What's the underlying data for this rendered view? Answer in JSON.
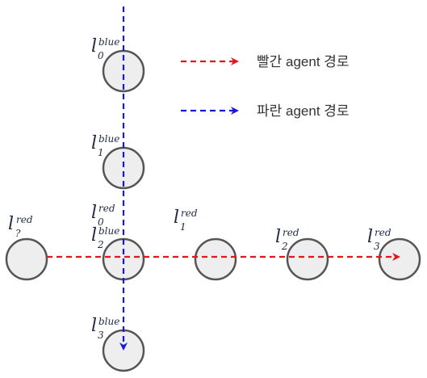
{
  "legend": {
    "red_label": "빨간 agent 경로",
    "blue_label": "파란 agent 경로"
  },
  "colors": {
    "red_path": "#e8141c",
    "blue_path": "#1616dd",
    "node_fill": "#eeeeee",
    "node_stroke": "#555555"
  },
  "labels": {
    "blue0": {
      "main": "l",
      "sup": "blue",
      "sub": "0"
    },
    "blue1": {
      "main": "l",
      "sup": "blue",
      "sub": "1"
    },
    "red0": {
      "main": "l",
      "sup": "red",
      "sub": "0"
    },
    "blue2": {
      "main": "l",
      "sup": "blue",
      "sub": "2"
    },
    "redq": {
      "main": "l",
      "sup": "red",
      "sub": "?"
    },
    "red1": {
      "main": "l",
      "sup": "red",
      "sub": "1"
    },
    "red2": {
      "main": "l",
      "sup": "red",
      "sub": "2"
    },
    "red3": {
      "main": "l",
      "sup": "red",
      "sub": "3"
    },
    "blue3": {
      "main": "l",
      "sup": "blue",
      "sub": "3"
    }
  }
}
